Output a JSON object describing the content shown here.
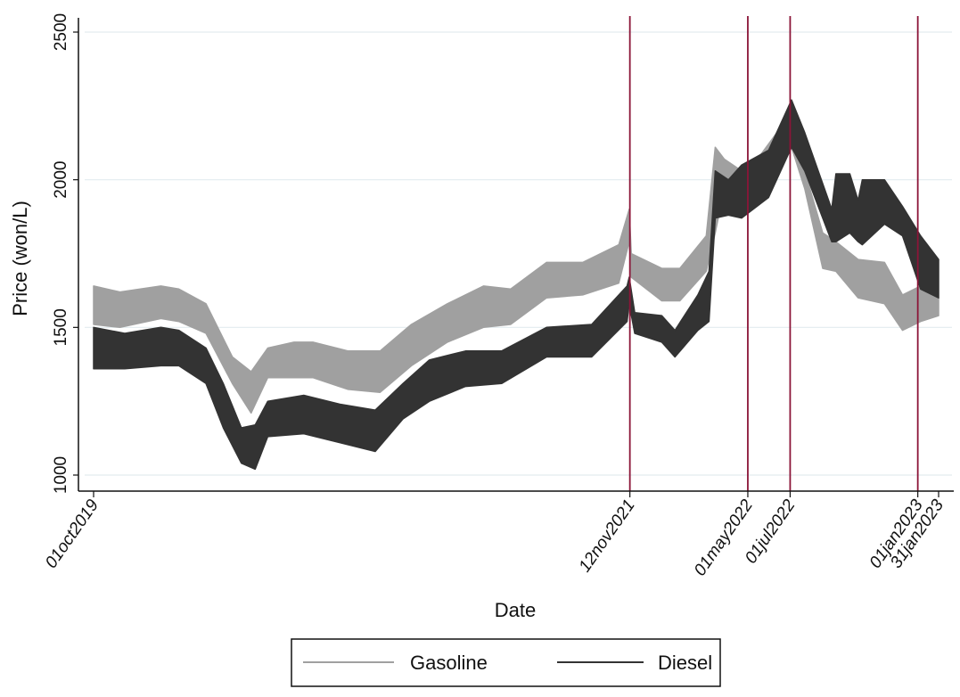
{
  "chart_data": {
    "type": "area",
    "title": "",
    "xlabel": "Date",
    "ylabel": "Price (won/L)",
    "ylim": [
      1000,
      2500
    ],
    "xlim": [
      "2019-10-01",
      "2023-01-31"
    ],
    "yticks": [
      1000,
      1500,
      2000,
      2500
    ],
    "ytick_labels": [
      "1000",
      "1500",
      "2000",
      "2500"
    ],
    "xticks": [
      "2019-10-01",
      "2021-11-12",
      "2022-05-01",
      "2022-07-01",
      "2023-01-01",
      "2023-01-31"
    ],
    "xtick_labels": [
      "01oct2019",
      "12nov2021",
      "01may2022",
      "01jul2022",
      "01jan2023",
      "31jan2023"
    ],
    "vertical_lines": [
      "2021-11-12",
      "2022-05-01",
      "2022-07-01",
      "2023-01-01"
    ],
    "vertical_line_color": "#8b1538",
    "grid": "horizontal",
    "legend": "bottom",
    "series": [
      {
        "name": "Gasoline",
        "color": "#a0a0a0",
        "points": [
          [
            "2019-10-01",
            1510,
            1640
          ],
          [
            "2019-11-08",
            1500,
            1620
          ],
          [
            "2020-01-06",
            1530,
            1640
          ],
          [
            "2020-02-01",
            1520,
            1630
          ],
          [
            "2020-03-11",
            1480,
            1580
          ],
          [
            "2020-04-18",
            1310,
            1400
          ],
          [
            "2020-05-15",
            1210,
            1350
          ],
          [
            "2020-06-08",
            1330,
            1430
          ],
          [
            "2020-07-16",
            1330,
            1450
          ],
          [
            "2020-08-12",
            1330,
            1450
          ],
          [
            "2020-10-02",
            1290,
            1420
          ],
          [
            "2020-11-17",
            1280,
            1420
          ],
          [
            "2021-01-01",
            1370,
            1510
          ],
          [
            "2021-02-22",
            1450,
            1580
          ],
          [
            "2021-04-15",
            1500,
            1640
          ],
          [
            "2021-05-24",
            1510,
            1630
          ],
          [
            "2021-07-15",
            1600,
            1720
          ],
          [
            "2021-09-05",
            1610,
            1720
          ],
          [
            "2021-10-27",
            1650,
            1780
          ],
          [
            "2021-11-11",
            1790,
            1900
          ],
          [
            "2021-11-14",
            1670,
            1750
          ],
          [
            "2021-12-28",
            1590,
            1700
          ],
          [
            "2022-01-23",
            1590,
            1700
          ],
          [
            "2022-03-02",
            1690,
            1810
          ],
          [
            "2022-03-15",
            1820,
            2110
          ],
          [
            "2022-03-28",
            1970,
            2070
          ],
          [
            "2022-04-22",
            1960,
            2030
          ],
          [
            "2022-05-18",
            2000,
            2080
          ],
          [
            "2022-06-12",
            2080,
            2160
          ],
          [
            "2022-07-03",
            2110,
            2130
          ],
          [
            "2022-07-22",
            1970,
            2030
          ],
          [
            "2022-08-17",
            1700,
            1820
          ],
          [
            "2022-09-05",
            1690,
            1790
          ],
          [
            "2022-10-07",
            1600,
            1730
          ],
          [
            "2022-11-14",
            1580,
            1720
          ],
          [
            "2022-12-10",
            1490,
            1610
          ],
          [
            "2023-01-05",
            1520,
            1640
          ],
          [
            "2023-01-31",
            1540,
            1600
          ]
        ]
      },
      {
        "name": "Diesel",
        "color": "#333333",
        "points": [
          [
            "2019-10-01",
            1360,
            1500
          ],
          [
            "2019-11-15",
            1360,
            1480
          ],
          [
            "2020-01-06",
            1370,
            1500
          ],
          [
            "2020-02-01",
            1370,
            1490
          ],
          [
            "2020-03-11",
            1310,
            1430
          ],
          [
            "2020-04-05",
            1160,
            1310
          ],
          [
            "2020-05-01",
            1040,
            1160
          ],
          [
            "2020-05-21",
            1020,
            1170
          ],
          [
            "2020-06-08",
            1130,
            1250
          ],
          [
            "2020-07-30",
            1140,
            1270
          ],
          [
            "2020-09-20",
            1110,
            1240
          ],
          [
            "2020-11-10",
            1080,
            1220
          ],
          [
            "2020-12-20",
            1190,
            1310
          ],
          [
            "2021-01-27",
            1250,
            1390
          ],
          [
            "2021-03-20",
            1300,
            1420
          ],
          [
            "2021-05-11",
            1310,
            1420
          ],
          [
            "2021-07-15",
            1400,
            1500
          ],
          [
            "2021-09-18",
            1400,
            1510
          ],
          [
            "2021-11-08",
            1520,
            1640
          ],
          [
            "2021-11-11",
            1580,
            1670
          ],
          [
            "2021-11-19",
            1480,
            1550
          ],
          [
            "2021-12-28",
            1450,
            1540
          ],
          [
            "2022-01-16",
            1400,
            1490
          ],
          [
            "2022-02-18",
            1490,
            1610
          ],
          [
            "2022-03-06",
            1520,
            1690
          ],
          [
            "2022-03-15",
            1870,
            2030
          ],
          [
            "2022-04-03",
            1880,
            2000
          ],
          [
            "2022-04-22",
            1870,
            2050
          ],
          [
            "2022-05-31",
            1940,
            2100
          ],
          [
            "2022-07-03",
            2110,
            2270
          ],
          [
            "2022-07-22",
            2030,
            2160
          ],
          [
            "2022-08-30",
            1790,
            1900
          ],
          [
            "2022-09-05",
            1790,
            2020
          ],
          [
            "2022-09-25",
            1820,
            2020
          ],
          [
            "2022-10-07",
            1790,
            1930
          ],
          [
            "2022-10-13",
            1780,
            2000
          ],
          [
            "2022-11-14",
            1850,
            2000
          ],
          [
            "2022-12-10",
            1810,
            1910
          ],
          [
            "2023-01-05",
            1630,
            1810
          ],
          [
            "2023-01-31",
            1600,
            1730
          ]
        ]
      }
    ]
  }
}
